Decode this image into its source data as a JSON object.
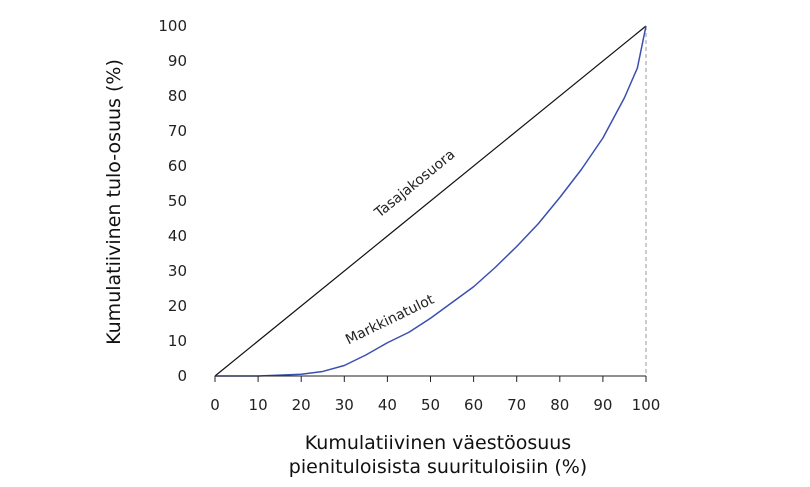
{
  "chart_data": {
    "type": "line",
    "title": "",
    "xlabel_lines": [
      "Kumulatiivinen väestöosuus",
      "pienituloisista suurituloisiin (%)"
    ],
    "ylabel": "Kumulatiivinen tulo-osuus (%)",
    "xlim": [
      0,
      100
    ],
    "ylim": [
      0,
      100
    ],
    "xticks": [
      0,
      10,
      20,
      30,
      40,
      50,
      60,
      70,
      80,
      90,
      100
    ],
    "yticks": [
      0,
      10,
      20,
      30,
      40,
      50,
      60,
      70,
      80,
      90,
      100
    ],
    "grid": false,
    "series": [
      {
        "name": "Tasajakosuora",
        "color": "#111111",
        "x": [
          0,
          100
        ],
        "y": [
          0,
          100
        ]
      },
      {
        "name": "Markkinatulot",
        "color": "#3a4fb0",
        "x": [
          0,
          10,
          20,
          25,
          30,
          35,
          40,
          45,
          50,
          55,
          60,
          65,
          70,
          75,
          80,
          85,
          90,
          95,
          98,
          100
        ],
        "y": [
          0,
          0,
          0.5,
          1.3,
          3,
          6,
          9.5,
          12.5,
          16.5,
          21,
          25.5,
          31,
          37,
          43.5,
          51,
          59,
          68,
          79.5,
          88,
          100
        ]
      }
    ],
    "annotations": [
      {
        "text": "Tasajakosuora",
        "x": 47,
        "y": 54,
        "series": 0
      },
      {
        "text": "Markkinatulot",
        "x": 41,
        "y": 15,
        "series": 1
      }
    ],
    "reference_line": {
      "x": 100,
      "style": "dashed",
      "color": "#9a9a9a"
    }
  }
}
